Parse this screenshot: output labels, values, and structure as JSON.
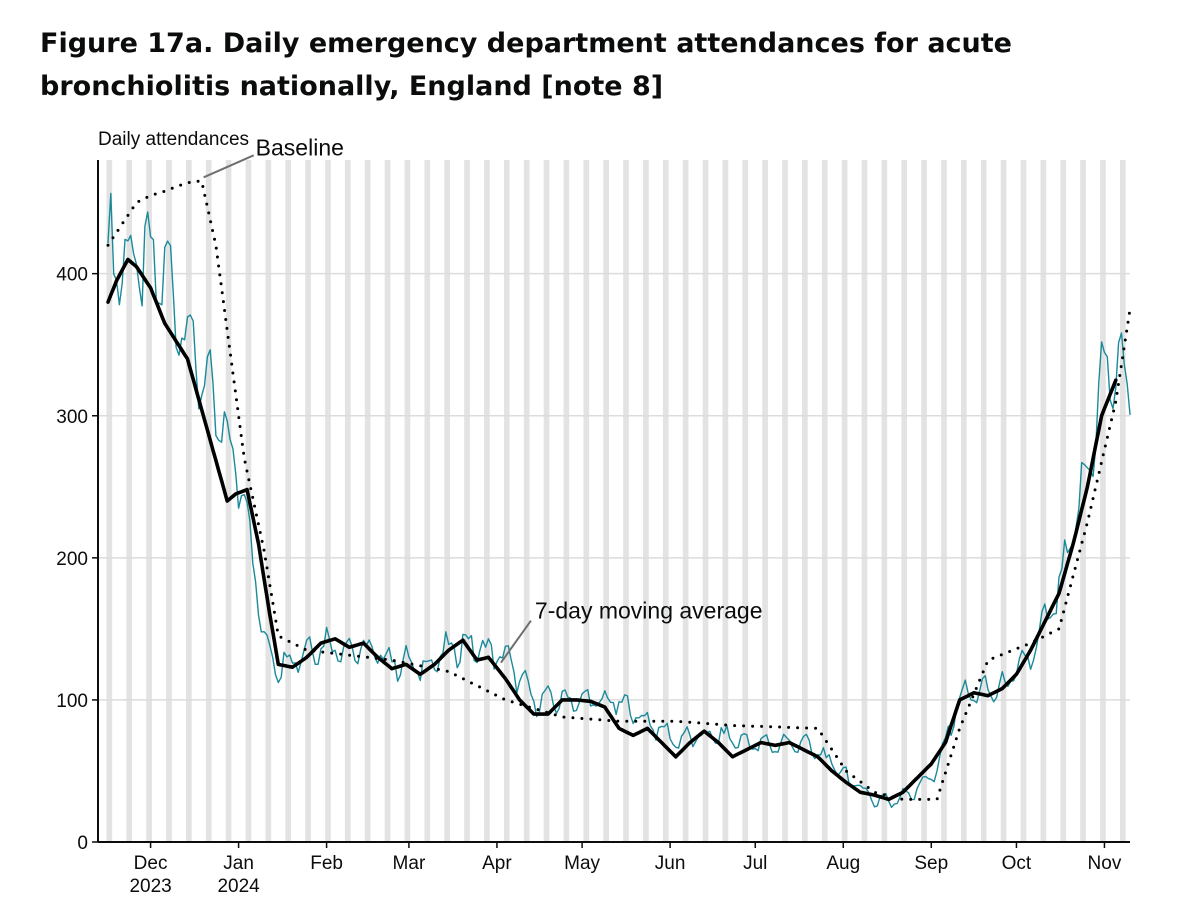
{
  "title": "Figure 17a. Daily emergency department attendances for acute bronchiolitis nationally, England [note 8]",
  "chart_data": {
    "type": "line",
    "title": "Figure 17a. Daily emergency department attendances for acute bronchiolitis nationally, England [note 8]",
    "ylabel": "Daily attendances",
    "xlabel": "",
    "ylim": [
      0,
      480
    ],
    "yticks": [
      0,
      100,
      200,
      300,
      400
    ],
    "x_start": "2023-11-18",
    "x_end": "2024-11-12",
    "weekend_shading": true,
    "grid": "horizontal",
    "x_ticks": [
      {
        "month": "Dec",
        "year": "2023",
        "day": 15
      },
      {
        "month": "Jan",
        "year": "2024",
        "day": 46
      },
      {
        "month": "Feb",
        "year": "",
        "day": 77
      },
      {
        "month": "Mar",
        "year": "",
        "day": 106
      },
      {
        "month": "Apr",
        "year": "",
        "day": 137
      },
      {
        "month": "May",
        "year": "",
        "day": 167
      },
      {
        "month": "Jun",
        "year": "",
        "day": 198
      },
      {
        "month": "Jul",
        "year": "",
        "day": 228
      },
      {
        "month": "Aug",
        "year": "",
        "day": 259
      },
      {
        "month": "Sep",
        "year": "",
        "day": 290
      },
      {
        "month": "Oct",
        "year": "",
        "day": 320
      },
      {
        "month": "Nov",
        "year": "",
        "day": 351
      }
    ],
    "annotations": [
      {
        "label": "Baseline",
        "series": "Baseline",
        "day": 33
      },
      {
        "label": "7-day moving average",
        "series": "7-day moving average",
        "day": 149
      }
    ],
    "series": [
      {
        "name": "Daily attendances",
        "color": "#1a8a9a",
        "days": [
          0,
          20,
          25,
          40,
          48,
          55,
          60,
          75,
          90,
          110,
          125,
          140,
          150,
          165,
          180,
          200,
          215,
          230,
          245,
          255,
          268,
          275,
          285,
          292,
          300,
          315,
          325,
          335,
          345,
          350,
          355,
          360
        ],
        "values": [
          415,
          400,
          375,
          290,
          248,
          140,
          125,
          140,
          135,
          122,
          140,
          130,
          100,
          100,
          98,
          72,
          75,
          68,
          70,
          55,
          33,
          28,
          38,
          50,
          103,
          108,
          130,
          175,
          260,
          325,
          335,
          320
        ]
      },
      {
        "name": "7-day moving average",
        "color": "#000000",
        "days": [
          0,
          3,
          7,
          10,
          15,
          20,
          28,
          35,
          42,
          45,
          49,
          53,
          57,
          60,
          65,
          70,
          75,
          80,
          85,
          90,
          95,
          100,
          105,
          110,
          115,
          120,
          125,
          130,
          134,
          140,
          145,
          150,
          155,
          160,
          165,
          170,
          175,
          180,
          185,
          190,
          195,
          200,
          205,
          210,
          215,
          220,
          225,
          230,
          235,
          240,
          245,
          250,
          255,
          260,
          265,
          270,
          275,
          280,
          285,
          290,
          295,
          300,
          305,
          310,
          315,
          320,
          325,
          330,
          335,
          340,
          345,
          350,
          355
        ],
        "values": [
          380,
          395,
          410,
          405,
          390,
          365,
          340,
          290,
          240,
          245,
          248,
          210,
          160,
          125,
          123,
          130,
          140,
          143,
          137,
          140,
          130,
          122,
          125,
          118,
          125,
          135,
          142,
          128,
          130,
          115,
          100,
          90,
          90,
          100,
          100,
          99,
          95,
          80,
          75,
          80,
          70,
          60,
          70,
          78,
          70,
          60,
          65,
          70,
          68,
          70,
          65,
          60,
          50,
          42,
          35,
          33,
          30,
          35,
          45,
          55,
          70,
          100,
          105,
          103,
          108,
          118,
          135,
          155,
          175,
          210,
          250,
          300,
          325
        ]
      },
      {
        "name": "Baseline",
        "color": "#000000",
        "style": "dotted",
        "days": [
          0,
          5,
          10,
          15,
          20,
          25,
          30,
          33,
          38,
          42,
          48,
          55,
          60,
          70,
          100,
          120,
          140,
          160,
          180,
          200,
          220,
          250,
          260,
          270,
          280,
          292,
          300,
          310,
          325,
          335,
          345,
          355,
          360
        ],
        "values": [
          420,
          435,
          450,
          455,
          458,
          462,
          465,
          465,
          420,
          360,
          270,
          205,
          145,
          135,
          128,
          120,
          100,
          88,
          85,
          85,
          82,
          80,
          50,
          35,
          30,
          30,
          80,
          128,
          140,
          150,
          225,
          310,
          375
        ]
      }
    ]
  }
}
